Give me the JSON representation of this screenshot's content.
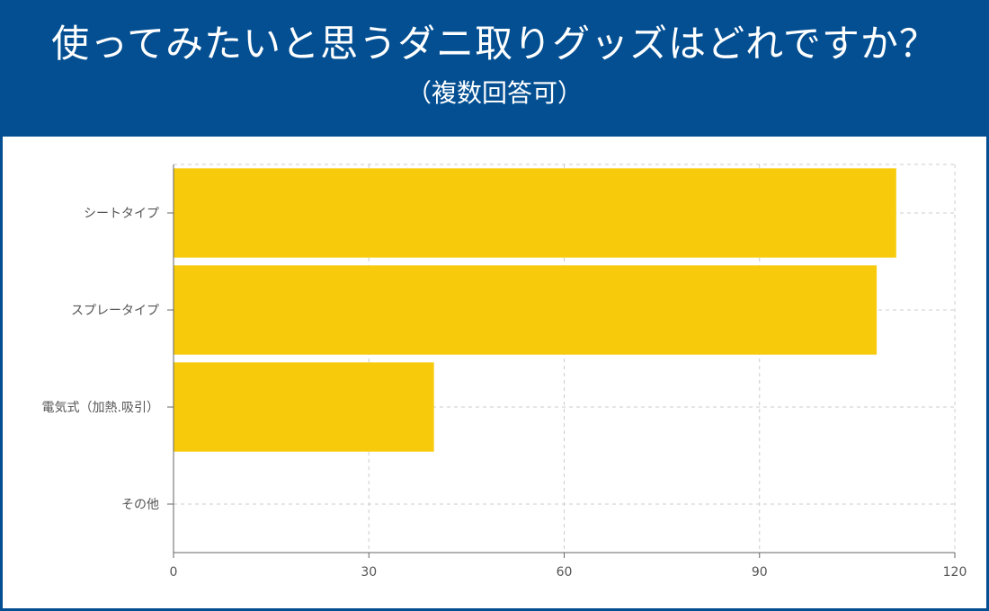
{
  "header": {
    "title": "使ってみたいと思うダニ取りグッズはどれですか？",
    "subtitle": "（複数回答可）"
  },
  "colors": {
    "header_bg": "#034f92",
    "bar": "#f7cb0c",
    "grid": "#cccccc",
    "axis": "#666666"
  },
  "chart_data": {
    "type": "bar",
    "orientation": "horizontal",
    "title": "使ってみたいと思うダニ取りグッズはどれですか？",
    "subtitle": "（複数回答可）",
    "categories": [
      "シートタイプ",
      "スプレータイプ",
      "電気式（加熱.吸引）",
      "その他"
    ],
    "values": [
      111,
      108,
      40,
      0
    ],
    "xlim": [
      0,
      120
    ],
    "xticks": [
      0,
      30,
      60,
      90,
      120
    ],
    "xlabel": "",
    "ylabel": "",
    "grid": true
  }
}
